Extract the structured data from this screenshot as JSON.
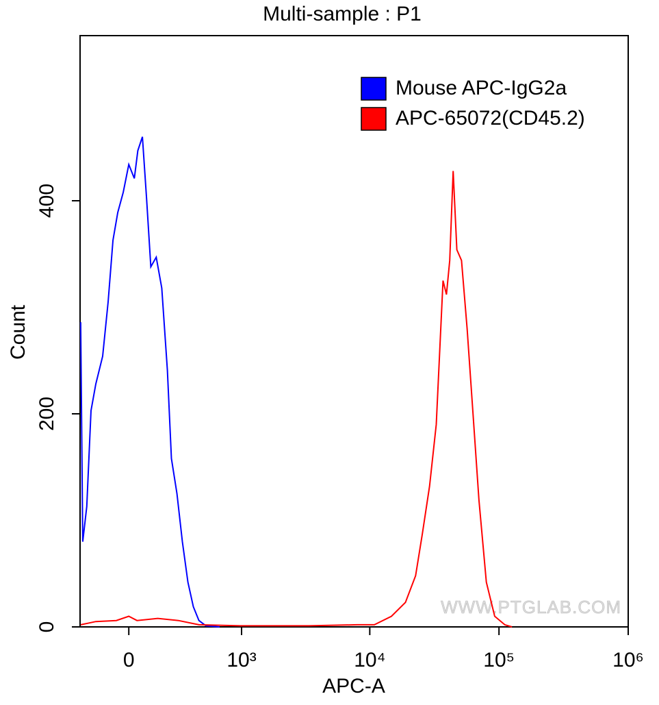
{
  "chart_data": {
    "type": "line",
    "title": "Multi-sample : P1",
    "xlabel": "APC-A",
    "ylabel": "Count",
    "watermark": "WWW.PTGLAB.COM",
    "xscale": "biexponential",
    "xlim": [
      -268,
      1000000
    ],
    "ylim": [
      0,
      555
    ],
    "xticks": [
      0,
      {
        "value": 1000,
        "label": "10³"
      },
      {
        "value": 10000,
        "label": "10⁴"
      },
      {
        "value": 100000,
        "label": "10⁵"
      },
      {
        "value": 1000000,
        "label": "10⁶"
      }
    ],
    "yticks": [
      0,
      200,
      400
    ],
    "legend": "upper right",
    "series": [
      {
        "name": "Mouse APC-IgG2a",
        "color": "#0000ff",
        "x": [
          -264,
          -250,
          -224,
          -198,
          -170,
          -132,
          -103,
          -78,
          -54,
          -27,
          0,
          27,
          44,
          67,
          88,
          110,
          139,
          170,
          203,
          228,
          264,
          302,
          344,
          388,
          437,
          505,
          661
        ],
        "values": [
          286,
          80,
          113,
          203,
          228,
          254,
          305,
          363,
          389,
          408,
          434,
          421,
          447,
          460,
          402,
          338,
          347,
          318,
          241,
          158,
          125,
          80,
          42,
          19,
          6,
          1,
          0
        ]
      },
      {
        "name": "APC-65072(CD45.2)",
        "color": "#ff0000",
        "x": [
          -264,
          -170,
          -61,
          0,
          40,
          147,
          274,
          437,
          975,
          3385,
          7970,
          10840,
          14710,
          18890,
          22630,
          25500,
          29000,
          32700,
          36900,
          39200,
          41600,
          44200,
          47200,
          51300,
          56700,
          62700,
          70000,
          79800,
          92600,
          111000,
          126000
        ],
        "values": [
          2,
          5,
          6,
          10,
          6,
          8,
          6,
          2,
          1,
          1,
          2,
          2,
          10,
          23,
          48,
          87,
          132,
          190,
          325,
          312,
          344,
          428,
          354,
          344,
          280,
          203,
          119,
          42,
          10,
          2,
          0
        ]
      }
    ]
  }
}
